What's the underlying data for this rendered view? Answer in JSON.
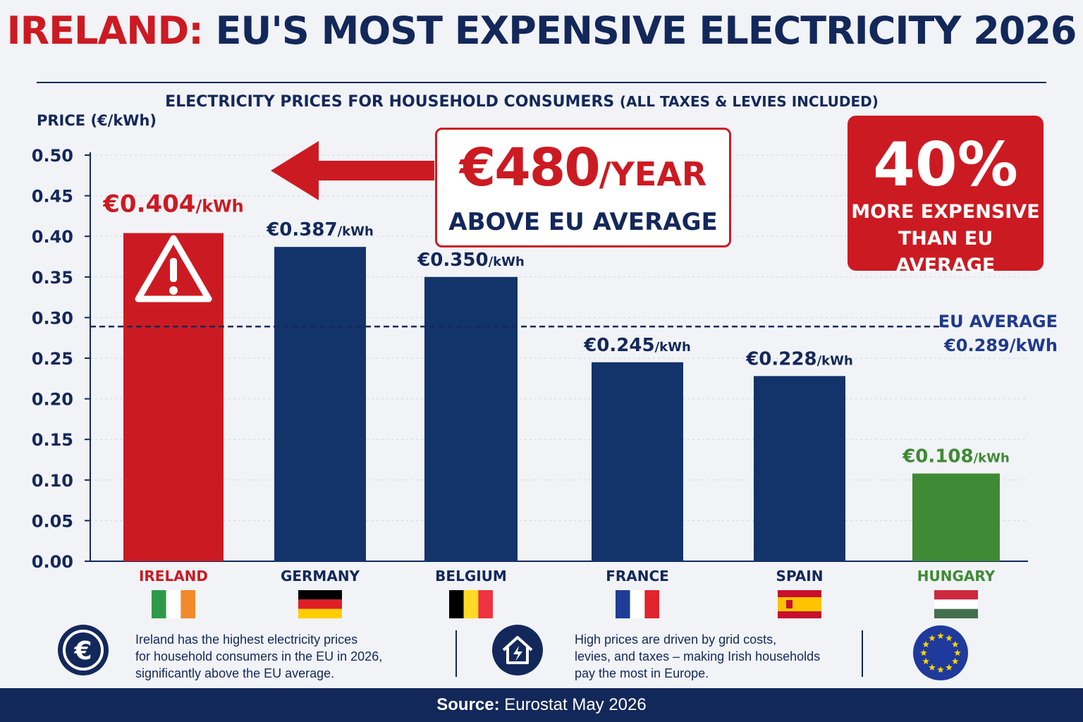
{
  "header": {
    "title_highlight": "IRELAND:",
    "title_rest": " EU'S MOST EXPENSIVE ELECTRICITY 2026",
    "subtitle_main": "ELECTRICITY PRICES FOR HOUSEHOLD CONSUMERS ",
    "subtitle_paren": "(ALL TAXES & LEVIES INCLUDED)"
  },
  "chart_data": {
    "type": "bar",
    "ylabel": "PRICE (€/kWh)",
    "ylim": [
      0,
      0.5
    ],
    "yticks": [
      "0.00",
      "0.05",
      "0.10",
      "0.15",
      "0.20",
      "0.25",
      "0.30",
      "0.35",
      "0.40",
      "0.45",
      "0.50"
    ],
    "categories": [
      "IRELAND",
      "GERMANY",
      "BELGIUM",
      "FRANCE",
      "SPAIN",
      "HUNGARY"
    ],
    "values": [
      0.404,
      0.387,
      0.35,
      0.245,
      0.228,
      0.108
    ],
    "value_labels": [
      "€0.404",
      "€0.387",
      "€0.350",
      "€0.245",
      "€0.228",
      "€0.108"
    ],
    "value_unit": "/kWh",
    "colors": [
      "#cc1a22",
      "#13336b",
      "#13336b",
      "#13336b",
      "#13336b",
      "#3f8a34"
    ],
    "label_colors": [
      "#cc1a22",
      "#13285a",
      "#13285a",
      "#13285a",
      "#13285a",
      "#3f8a34"
    ],
    "flags": [
      "ireland-flag",
      "germany-flag",
      "belgium-flag",
      "france-flag",
      "spain-flag",
      "hungary-flag"
    ],
    "reference_line": {
      "value": 0.289,
      "label_line1": "EU AVERAGE",
      "label_line2": "€0.289/kWh"
    },
    "grid": true
  },
  "callout": {
    "amount": "€480",
    "unit": "/YEAR",
    "text": "ABOVE EU AVERAGE"
  },
  "badge": {
    "percent": "40%",
    "line1": "MORE EXPENSIVE",
    "line2": "THAN EU AVERAGE"
  },
  "info": {
    "left": [
      "Ireland has the highest electricity prices",
      "for household consumers in the EU in 2026,",
      "significantly above the EU average."
    ],
    "right": [
      "High prices are driven by grid costs,",
      "levies, and taxes – making Irish households",
      "pay the most in Europe."
    ]
  },
  "footer": {
    "label": "Source:",
    "value": "Eurostat May 2026"
  },
  "colors": {
    "navy": "#13285a",
    "red": "#cc1a22",
    "green": "#3f8a34"
  }
}
